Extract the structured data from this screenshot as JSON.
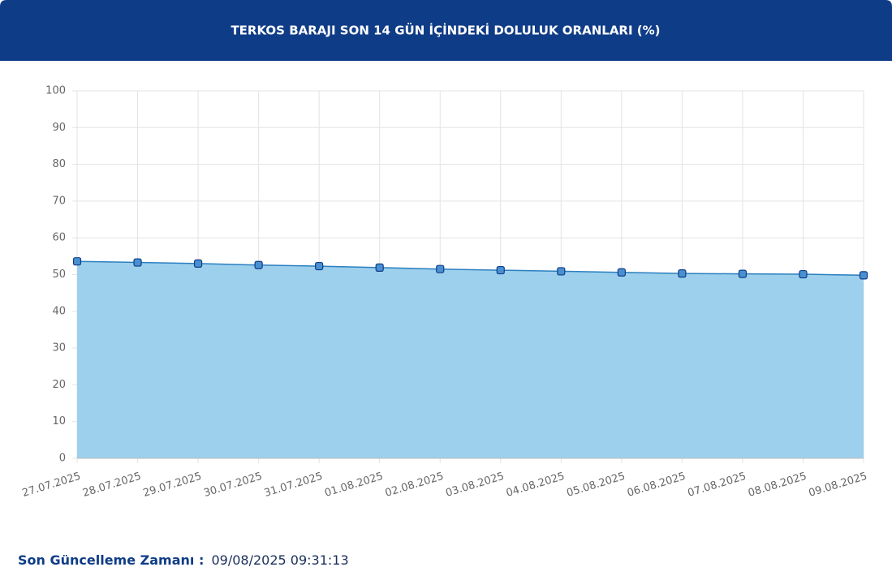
{
  "chart_data": {
    "type": "line",
    "title": "TERKOS BARAJI SON 14 GÜN İÇİNDEKİ DOLULUK ORANLARI (%)",
    "categories": [
      "27.07.2025",
      "28.07.2025",
      "29.07.2025",
      "30.07.2025",
      "31.07.2025",
      "01.08.2025",
      "02.08.2025",
      "03.08.2025",
      "04.08.2025",
      "05.08.2025",
      "06.08.2025",
      "07.08.2025",
      "08.08.2025",
      "09.08.2025"
    ],
    "values": [
      53.6,
      53.3,
      53.0,
      52.6,
      52.3,
      51.9,
      51.5,
      51.2,
      50.9,
      50.6,
      50.3,
      50.2,
      50.1,
      49.8
    ],
    "color": "#2b7fc0",
    "fill_color": "#9dd0ec",
    "ylim": [
      0,
      100
    ],
    "yticks": [
      0,
      10,
      20,
      30,
      40,
      50,
      60,
      70,
      80,
      90,
      100
    ],
    "grid": true
  },
  "footer": {
    "label": "Son Güncelleme Zamanı :",
    "value": "09/08/2025 09:31:13"
  }
}
